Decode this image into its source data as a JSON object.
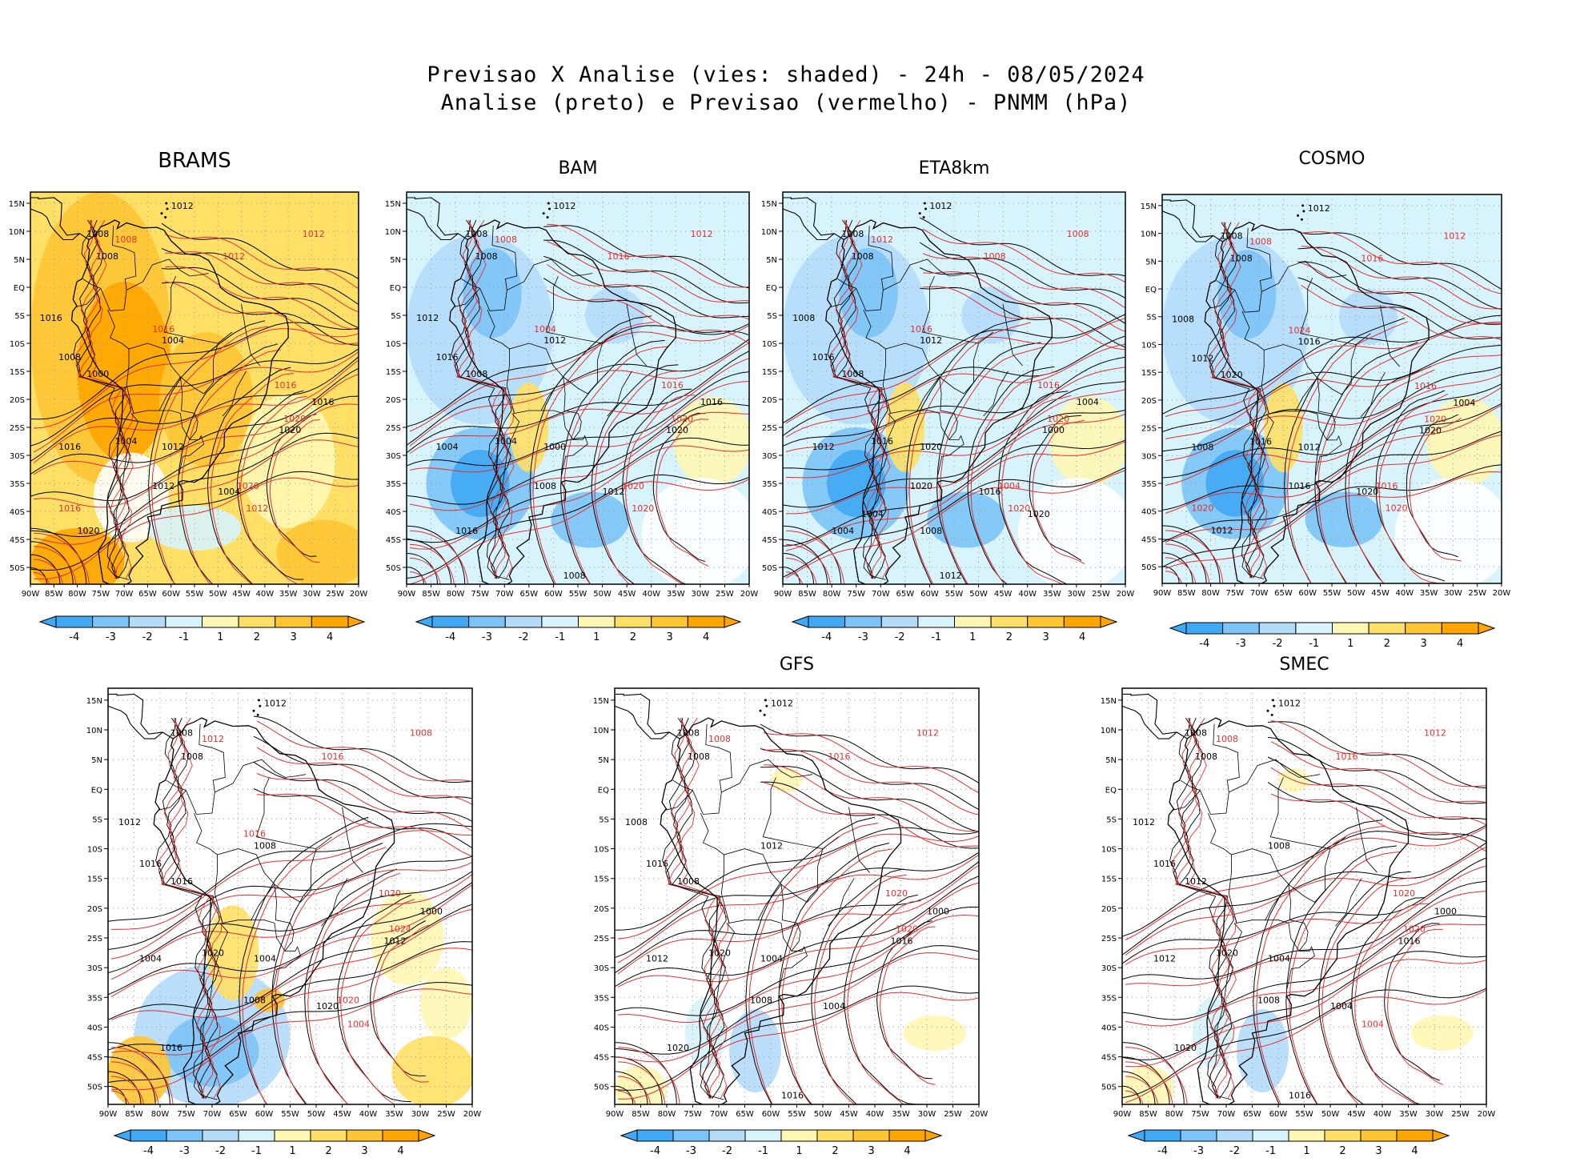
{
  "title_line1": "Previsao X Analise (vies: shaded) - 24h - 08/05/2024",
  "title_line2": "Analise (preto) e Previsao (vermelho) - PNMM (hPa)",
  "y_ticks": [
    "15N",
    "10N",
    "5N",
    "EQ",
    "5S",
    "10S",
    "15S",
    "20S",
    "25S",
    "30S",
    "35S",
    "40S",
    "45S",
    "50S"
  ],
  "x_ticks": [
    "90W",
    "85W",
    "80W",
    "75W",
    "70W",
    "65W",
    "60W",
    "55W",
    "50W",
    "45W",
    "40W",
    "35W",
    "30W",
    "25W",
    "20W"
  ],
  "colorbar": {
    "labels": [
      "-4",
      "-3",
      "-2",
      "-1",
      "1",
      "2",
      "3",
      "4"
    ],
    "colors": [
      "#3fa9f5",
      "#7cc4f7",
      "#b4dcf9",
      "#d7f3fb",
      "#ffffff",
      "#fff7b2",
      "#ffe066",
      "#ffc533",
      "#ffa500"
    ]
  },
  "colors": {
    "analysis": "#000000",
    "forecast": "#e03030"
  },
  "panels": [
    {
      "id": "brams",
      "name": "BRAMS",
      "bias": "warm",
      "labels_black": [
        "1012",
        "1008",
        "1008",
        "1016",
        "1008",
        "1004",
        "1000",
        "1004",
        "1012",
        "1016",
        "1020",
        "1016",
        "1012",
        "1004",
        "1020"
      ],
      "labels_red": [
        "1012",
        "1008",
        "1012",
        "1016",
        "1020",
        "1012",
        "1016",
        "1020",
        "1016"
      ]
    },
    {
      "id": "bam",
      "name": "BAM",
      "bias": "cold",
      "labels_black": [
        "1012",
        "1008",
        "1008",
        "1012",
        "1016",
        "1012",
        "1008",
        "1004",
        "1000",
        "1016",
        "1020",
        "1004",
        "1008",
        "1012",
        "1016",
        "1008"
      ],
      "labels_red": [
        "1012",
        "1008",
        "1016",
        "1016",
        "1020",
        "1020",
        "1004",
        "1020"
      ]
    },
    {
      "id": "eta",
      "name": "ETA8km",
      "bias": "cold",
      "labels_black": [
        "1012",
        "1008",
        "1008",
        "1008",
        "1016",
        "1012",
        "1008",
        "1016",
        "1020",
        "1004",
        "1000",
        "1012",
        "1020",
        "1016",
        "1004",
        "1012",
        "1008",
        "1004",
        "1020"
      ],
      "labels_red": [
        "1008",
        "1012",
        "1008",
        "1016",
        "1020",
        "1020",
        "1016",
        "1004"
      ]
    },
    {
      "id": "cosmo",
      "name": "COSMO",
      "bias": "cold",
      "labels_black": [
        "1012",
        "1008",
        "1008",
        "1008",
        "1012",
        "1016",
        "1020",
        "1016",
        "1012",
        "1004",
        "1020",
        "1008",
        "1016",
        "1020",
        "1012"
      ],
      "labels_red": [
        "1012",
        "1008",
        "1016",
        "1016",
        "1020",
        "1020",
        "1024",
        "1016",
        "1020"
      ]
    },
    {
      "id": "bot1",
      "name": "",
      "bias": "mixed",
      "labels_black": [
        "1012",
        "1008",
        "1008",
        "1012",
        "1016",
        "1008",
        "1016",
        "1020",
        "1004",
        "1000",
        "1012",
        "1004",
        "1008",
        "1020",
        "1016"
      ],
      "labels_red": [
        "1008",
        "1012",
        "1016",
        "1020",
        "1024",
        "1004",
        "1016",
        "1020"
      ]
    },
    {
      "id": "gfs",
      "name": "GFS",
      "bias": "neutral",
      "labels_black": [
        "1012",
        "1008",
        "1008",
        "1008",
        "1016",
        "1012",
        "1008",
        "1020",
        "1004",
        "1000",
        "1016",
        "1012",
        "1008",
        "1004",
        "1020",
        "1016"
      ],
      "labels_red": [
        "1012",
        "1008",
        "1016",
        "1020",
        "1020"
      ]
    },
    {
      "id": "smec",
      "name": "SMEC",
      "bias": "neutral",
      "labels_black": [
        "1012",
        "1008",
        "1008",
        "1012",
        "1016",
        "1008",
        "1012",
        "1020",
        "1004",
        "1000",
        "1016",
        "1012",
        "1008",
        "1004",
        "1020",
        "1016"
      ],
      "labels_red": [
        "1012",
        "1008",
        "1016",
        "1020",
        "1020",
        "1004"
      ]
    }
  ]
}
